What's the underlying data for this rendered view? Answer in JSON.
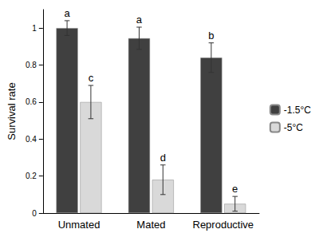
{
  "chart_data": {
    "type": "bar",
    "y_label": "Survival rate",
    "categories": [
      "Unmated",
      "Mated",
      "Reproductive"
    ],
    "series": [
      {
        "name": "-1.5°C",
        "color": "#404040",
        "values": [
          1.0,
          0.945,
          0.84
        ],
        "errors": [
          0.04,
          0.06,
          0.08
        ],
        "letters": [
          "a",
          "a",
          "b"
        ]
      },
      {
        "name": "-5°C",
        "color": "#d9d9d9",
        "values": [
          0.6,
          0.18,
          0.05
        ],
        "errors": [
          0.09,
          0.08,
          0.04
        ],
        "letters": [
          "c",
          "d",
          "e"
        ]
      }
    ],
    "ylim": [
      0,
      1.1
    ],
    "yticks": [
      0,
      0.2,
      0.4,
      0.6,
      0.8,
      1
    ],
    "grid": false,
    "legend": "right"
  }
}
